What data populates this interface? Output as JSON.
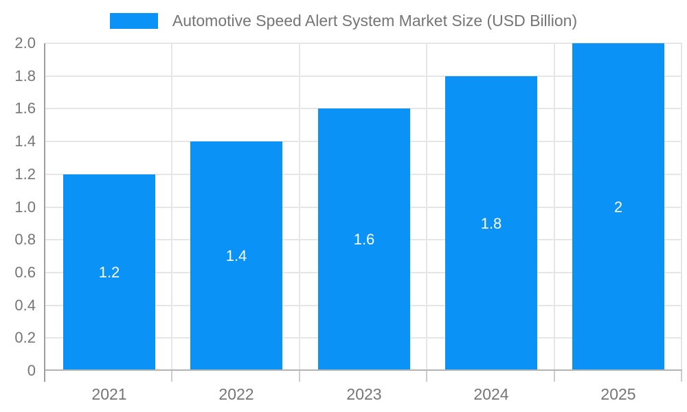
{
  "chart_data": {
    "type": "bar",
    "title": "Automotive Speed Alert System Market Size (USD Billion)",
    "categories": [
      "2021",
      "2022",
      "2023",
      "2024",
      "2025"
    ],
    "values": [
      1.2,
      1.4,
      1.6,
      1.8,
      2
    ],
    "bar_labels": [
      "1.2",
      "1.4",
      "1.6",
      "1.8",
      "2"
    ],
    "xlabel": "",
    "ylabel": "",
    "ylim": [
      0,
      2
    ],
    "y_ticks": [
      0,
      0.2,
      0.4,
      0.6,
      0.8,
      1.0,
      1.2,
      1.4,
      1.6,
      1.8,
      2.0
    ],
    "y_tick_labels": [
      "0",
      "0.2",
      "0.4",
      "0.6",
      "0.8",
      "1.0",
      "1.2",
      "1.4",
      "1.6",
      "1.8",
      "2.0"
    ],
    "grid": true,
    "legend_position": "top",
    "bar_label_position": "inside-center",
    "colors": {
      "bar": "#0a92f6",
      "bar_label_text": "#ffffff",
      "axis_text": "#757575",
      "gridline": "#e6e6e6",
      "axis_line": "#9e9e9e",
      "tick_mark": "#cccccc",
      "background": "#ffffff"
    }
  }
}
